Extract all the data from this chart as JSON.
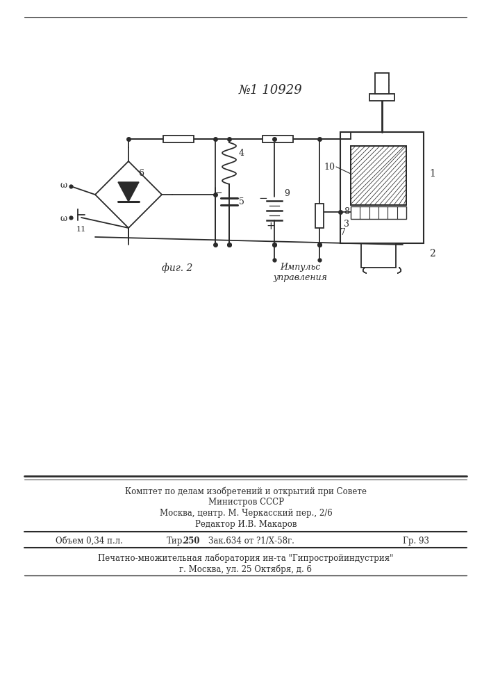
{
  "patent_number": "№1 10929",
  "fig_label": "фиг. 2",
  "impulse_label": "Импульс\nуправления",
  "footer_line1": "Комптет по делам изобретений и открытий при Совете",
  "footer_line2": "Министров СССР",
  "footer_line3": "Москва, центр. М. Черкасский пер., 2/6",
  "footer_line4": "Редактор И.В. Макаров",
  "footer_table": "Объем 0,34 п.л.   Тир.250   Зак.634 от ?1/Х-58г.        Гр. 93",
  "footer_bottom1": "Печатно-множительная лаборатория ин-та \"Гипростройиндустрия\"",
  "footer_bottom2": "г. Москва, ул. 25 Октября, д. 6",
  "bg_color": "#ffffff",
  "line_color": "#2a2a2a"
}
